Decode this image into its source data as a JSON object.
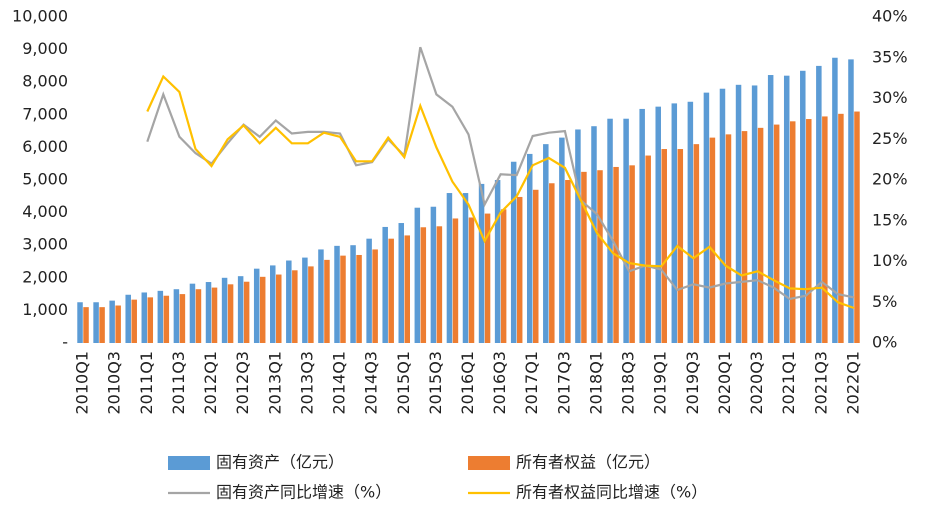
{
  "chart_data": {
    "type": "bar_line",
    "categories": [
      "2010Q1",
      null,
      "2010Q3",
      null,
      "2011Q1",
      null,
      "2011Q3",
      null,
      "2012Q1",
      null,
      "2012Q3",
      null,
      "2013Q1",
      null,
      "2013Q3",
      null,
      "2014Q1",
      null,
      "2014Q3",
      null,
      "2015Q1",
      null,
      "2015Q3",
      null,
      "2016Q1",
      null,
      "2016Q3",
      null,
      "2017Q1",
      null,
      "2017Q3",
      null,
      "2018Q1",
      null,
      "2018Q3",
      null,
      "2019Q1",
      null,
      "2019Q3",
      null,
      "2020Q1",
      null,
      "2020Q3",
      null,
      "2021Q1",
      null,
      "2021Q3",
      null,
      "2022Q1"
    ],
    "series": [
      {
        "name": "固有资产（亿元）",
        "kind": "bar",
        "color": "#5b9bd5",
        "values": [
          1250,
          1250,
          1300,
          1480,
          1550,
          1600,
          1650,
          1820,
          1870,
          2000,
          2050,
          2280,
          2380,
          2530,
          2620,
          2870,
          2980,
          3000,
          3200,
          3560,
          3680,
          4150,
          4180,
          4600,
          4600,
          4880,
          5000,
          5560,
          5800,
          6100,
          6300,
          6550,
          6650,
          6880,
          6880,
          7180,
          7250,
          7350,
          7400,
          7680,
          7800,
          7920,
          7900,
          8220,
          8200,
          8350,
          8500,
          8750,
          8700
        ]
      },
      {
        "name": "所有者权益（亿元）",
        "kind": "bar",
        "color": "#ed7d31",
        "values": [
          1100,
          1100,
          1150,
          1330,
          1400,
          1450,
          1500,
          1650,
          1700,
          1800,
          1880,
          2030,
          2100,
          2230,
          2350,
          2550,
          2680,
          2700,
          2870,
          3200,
          3300,
          3550,
          3580,
          3820,
          3850,
          3970,
          4100,
          4480,
          4700,
          4900,
          5000,
          5250,
          5300,
          5400,
          5450,
          5750,
          5950,
          5950,
          6100,
          6300,
          6400,
          6500,
          6600,
          6700,
          6800,
          6870,
          6950,
          7030,
          7100
        ]
      },
      {
        "name": "固有资产同比增速（%）",
        "kind": "line",
        "axis": "y2",
        "color": "#a5a5a5",
        "values": [
          null,
          null,
          null,
          null,
          24.7,
          30.5,
          25.3,
          23.3,
          22.0,
          24.5,
          26.8,
          25.3,
          27.3,
          25.7,
          25.9,
          25.9,
          25.7,
          21.8,
          22.2,
          25.0,
          23.0,
          36.3,
          30.5,
          29.0,
          25.6,
          17.0,
          20.7,
          20.6,
          25.4,
          25.8,
          26.0,
          17.5,
          15.8,
          12.5,
          8.8,
          9.5,
          9.0,
          6.5,
          7.2,
          6.8,
          7.3,
          7.5,
          7.7,
          6.8,
          5.4,
          5.8,
          7.5,
          6.0,
          5.6
        ]
      },
      {
        "name": "所有者权益同比增速（%）",
        "kind": "line",
        "axis": "y2",
        "color": "#ffc000",
        "values": [
          null,
          null,
          null,
          null,
          28.4,
          32.7,
          30.8,
          23.8,
          21.7,
          25.0,
          26.7,
          24.5,
          26.4,
          24.5,
          24.5,
          25.8,
          25.3,
          22.3,
          22.3,
          25.2,
          22.8,
          29.1,
          24.0,
          19.8,
          17.0,
          12.5,
          16.0,
          18.0,
          21.8,
          22.7,
          21.5,
          17.5,
          13.5,
          11.0,
          9.8,
          9.5,
          9.4,
          11.9,
          10.4,
          11.8,
          9.5,
          8.3,
          8.8,
          7.7,
          6.7,
          6.6,
          6.8,
          5.0,
          4.3
        ]
      }
    ],
    "ylim": [
      0,
      10000
    ],
    "yticks": [
      {
        "value": 0,
        "label": "-"
      },
      {
        "value": 1000,
        "label": "1,000"
      },
      {
        "value": 2000,
        "label": "2,000"
      },
      {
        "value": 3000,
        "label": "3,000"
      },
      {
        "value": 4000,
        "label": "4,000"
      },
      {
        "value": 5000,
        "label": "5,000"
      },
      {
        "value": 6000,
        "label": "6,000"
      },
      {
        "value": 7000,
        "label": "7,000"
      },
      {
        "value": 8000,
        "label": "8,000"
      },
      {
        "value": 9000,
        "label": "9,000"
      },
      {
        "value": 10000,
        "label": "10,000"
      }
    ],
    "y2lim": [
      0,
      40
    ],
    "y2ticks": [
      {
        "value": 0,
        "label": "0%"
      },
      {
        "value": 5,
        "label": "5%"
      },
      {
        "value": 10,
        "label": "10%"
      },
      {
        "value": 15,
        "label": "15%"
      },
      {
        "value": 20,
        "label": "20%"
      },
      {
        "value": 25,
        "label": "25%"
      },
      {
        "value": 30,
        "label": "30%"
      },
      {
        "value": 35,
        "label": "35%"
      },
      {
        "value": 40,
        "label": "40%"
      }
    ],
    "grid": false,
    "legend": "bottom"
  }
}
